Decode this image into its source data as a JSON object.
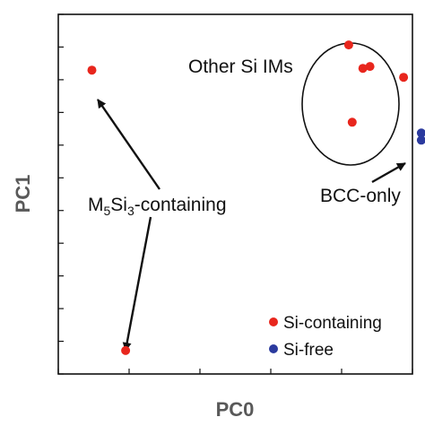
{
  "chart_data": {
    "type": "scatter",
    "xlabel": "PC0",
    "ylabel": "PC1",
    "xlim": [
      0,
      100
    ],
    "ylim": [
      0,
      100
    ],
    "grid": false,
    "legend_placement": "bottom-right",
    "series": [
      {
        "name": "Si-containing",
        "color": "#e8261d",
        "points": [
          {
            "x": 9.5,
            "y": 84.5
          },
          {
            "x": 19.0,
            "y": 6.5
          },
          {
            "x": 82.0,
            "y": 91.5
          },
          {
            "x": 86.0,
            "y": 85.0
          },
          {
            "x": 88.0,
            "y": 85.5
          },
          {
            "x": 97.5,
            "y": 82.5
          },
          {
            "x": 83.0,
            "y": 70.0
          }
        ]
      },
      {
        "name": "Si-free",
        "color": "#2b3a9e",
        "points": [
          {
            "x": 102.5,
            "y": 67.0
          },
          {
            "x": 102.5,
            "y": 65.0
          }
        ]
      }
    ],
    "annotations": [
      {
        "text": "Other Si IMs"
      },
      {
        "text_parts": [
          "M",
          "5",
          "Si",
          "3",
          "-containing"
        ]
      },
      {
        "text": "BCC-only"
      }
    ],
    "legend": [
      {
        "label": "Si-containing",
        "color": "#e8261d"
      },
      {
        "label": "Si-free",
        "color": "#2b3a9e"
      }
    ]
  }
}
